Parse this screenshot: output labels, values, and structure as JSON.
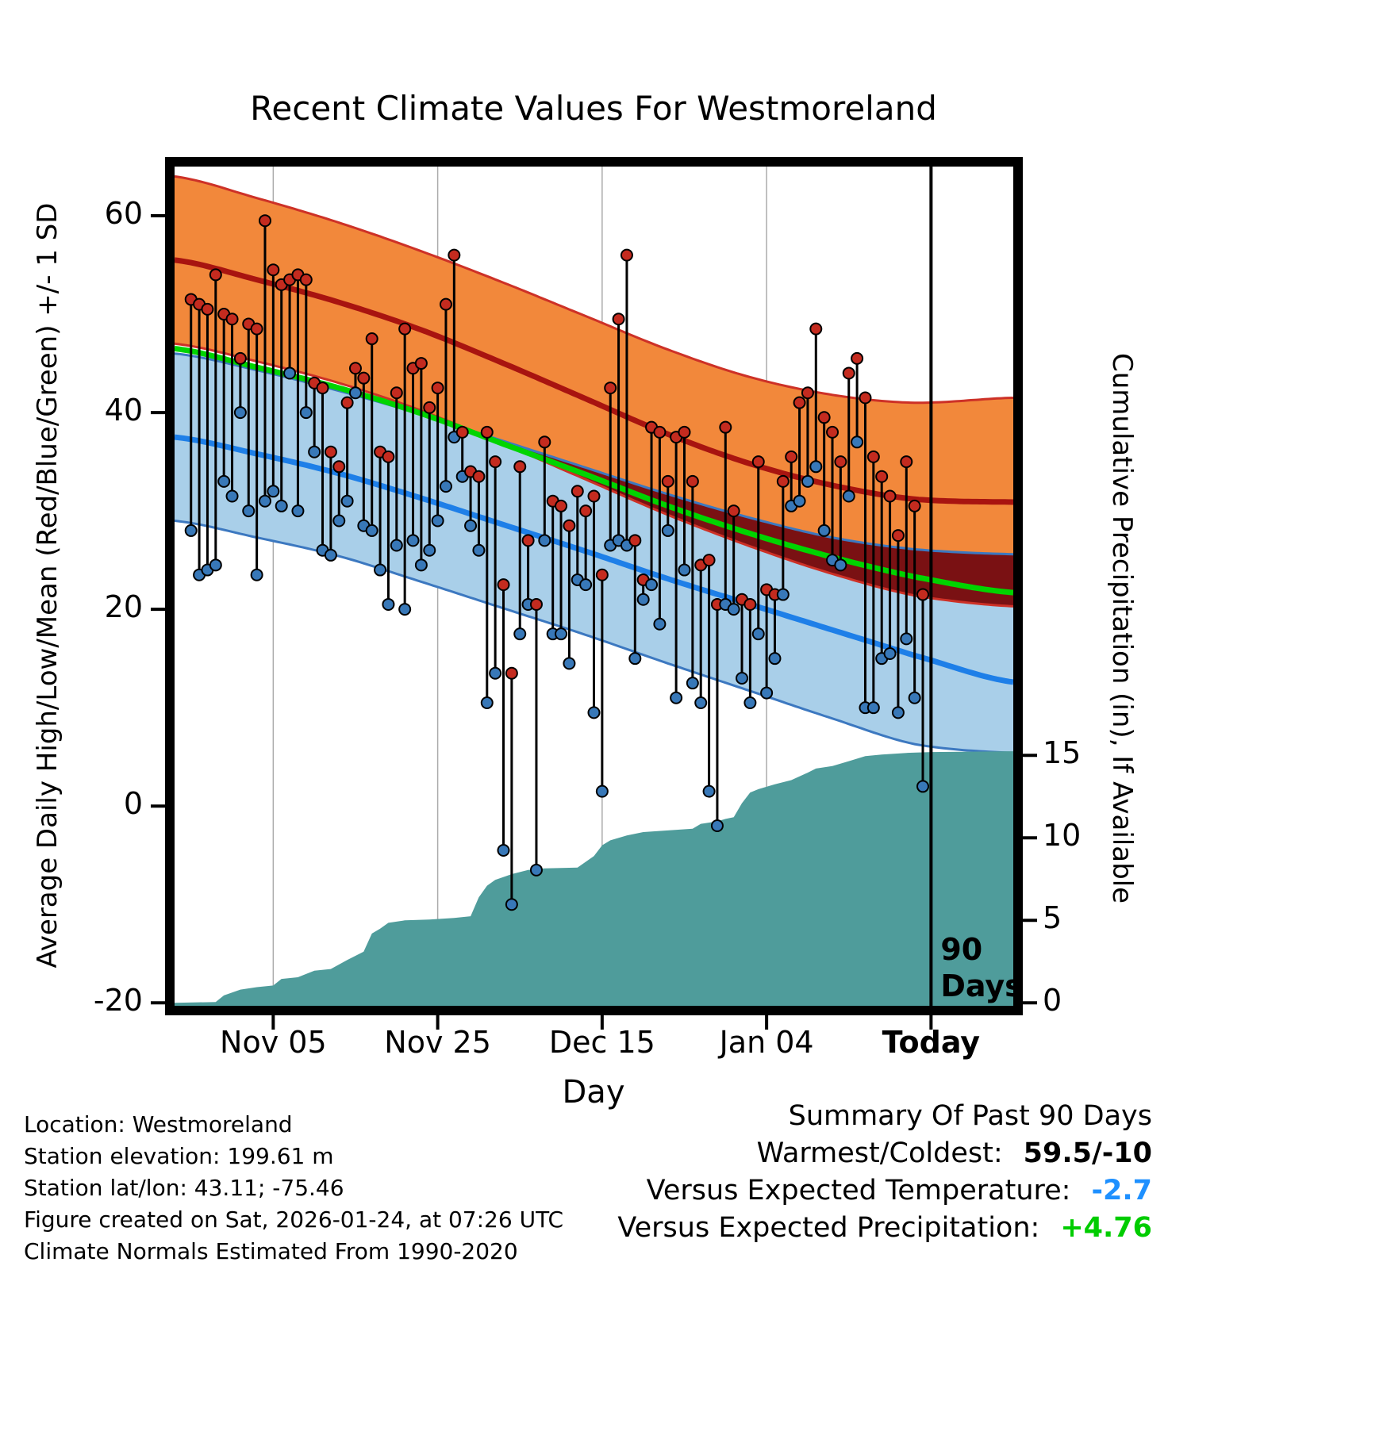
{
  "title": "Recent Climate Values For Westmoreland",
  "axes": {
    "x_label": "Day",
    "y_left_label": "Average Daily High/Low/Mean (Red/Blue/Green) +/- 1 SD",
    "y_right_label": "Cumulative Precipitation (in), If Available",
    "x_ticks": [
      {
        "day": 12,
        "label": "Nov 05",
        "bold": false
      },
      {
        "day": 32,
        "label": "Nov 25",
        "bold": false
      },
      {
        "day": 52,
        "label": "Dec 15",
        "bold": false
      },
      {
        "day": 72,
        "label": "Jan 04",
        "bold": false
      },
      {
        "day": 92,
        "label": "Today",
        "bold": true
      }
    ],
    "y_left_ticks": [
      {
        "value": 60,
        "label": "60"
      },
      {
        "value": 40,
        "label": "40"
      },
      {
        "value": 20,
        "label": "20"
      },
      {
        "value": 0,
        "label": "0"
      },
      {
        "value": -20,
        "label": "-20"
      }
    ],
    "y_right_ticks": [
      {
        "value": 0,
        "label": "0"
      },
      {
        "value": 5,
        "label": "5"
      },
      {
        "value": 10,
        "label": "10"
      },
      {
        "value": 15,
        "label": "15"
      }
    ]
  },
  "annotations": {
    "ninety_days": "90\nDays"
  },
  "station_info": [
    "Location: Westmoreland",
    "Station elevation: 199.61 m",
    "Station lat/lon: 43.11; -75.46",
    "Figure created on Sat, 2026-01-24, at 07:26 UTC",
    "Climate Normals Estimated From 1990-2020"
  ],
  "summary": {
    "title": "Summary Of Past 90 Days",
    "rows": [
      {
        "label": "Warmest/Coldest:",
        "value": "59.5/-10",
        "value_color": "#000000"
      },
      {
        "label": "Versus Expected Temperature:",
        "value": "-2.7",
        "value_color": "#1E90FF"
      },
      {
        "label": "Versus Expected Precipitation:",
        "value": "+4.76",
        "value_color": "#00CC00"
      }
    ]
  },
  "chart_data": {
    "type": "line+band+area+scatter",
    "x_unit": "day index (0 = Oct 24, ticks every 20 days)",
    "x_domain": [
      0,
      102
    ],
    "today_day": 92,
    "y_left_domain": [
      -20.3,
      65.0
    ],
    "y_left_ticks": [
      -20,
      0,
      20,
      40,
      60
    ],
    "y_right_unit": "in",
    "y_right_ticks": [
      0,
      5,
      10,
      15
    ],
    "y_right_scale": {
      "zero_temp": -20.0,
      "deg_per_in": 1.677
    },
    "normals": {
      "days": [
        0,
        10,
        20,
        30,
        40,
        50,
        60,
        70,
        80,
        90,
        102
      ],
      "high_upper": [
        64.0,
        61.8,
        59.3,
        56.4,
        53.2,
        49.8,
        46.4,
        43.6,
        41.8,
        41.0,
        41.5
      ],
      "high_mean": [
        55.5,
        53.5,
        51.2,
        48.4,
        45.0,
        41.4,
        37.8,
        34.8,
        32.6,
        31.2,
        30.9
      ],
      "high_lower": [
        47.0,
        45.2,
        43.0,
        40.2,
        36.8,
        33.2,
        29.6,
        26.4,
        23.6,
        21.4,
        20.3
      ],
      "mean": [
        46.5,
        44.6,
        42.5,
        39.9,
        36.8,
        33.7,
        30.5,
        27.7,
        25.3,
        23.3,
        21.7
      ],
      "low_upper": [
        46.0,
        44.3,
        42.2,
        39.8,
        37.1,
        34.4,
        31.7,
        29.3,
        27.3,
        26.1,
        25.6
      ],
      "low_mean": [
        37.5,
        35.8,
        33.8,
        31.3,
        28.6,
        25.9,
        23.1,
        20.5,
        17.9,
        15.3,
        12.6
      ],
      "low_lower": [
        29.0,
        27.3,
        25.4,
        22.8,
        20.1,
        17.4,
        14.5,
        11.7,
        8.9,
        6.3,
        5.4
      ]
    },
    "daily": {
      "start_day": 2,
      "high": [
        51.5,
        51,
        50.5,
        54,
        50,
        49.5,
        45.5,
        49,
        48.5,
        59.5,
        54.5,
        53,
        53.5,
        54,
        53.5,
        43,
        42.5,
        36,
        34.5,
        41,
        44.5,
        43.5,
        47.5,
        36,
        35.5,
        42,
        48.5,
        44.5,
        45,
        40.5,
        42.5,
        51,
        56,
        38,
        34,
        33.5,
        38,
        35,
        22.5,
        13.5,
        34.5,
        27,
        20.5,
        37,
        31,
        30.5,
        28.5,
        32,
        30,
        31.5,
        23.5,
        42.5,
        49.5,
        56,
        27,
        23,
        38.5,
        38,
        33,
        37.5,
        38,
        33,
        24.5,
        25,
        20.5,
        38.5,
        30,
        21,
        20.5,
        35,
        22,
        21.5,
        33,
        35.5,
        41,
        42,
        48.5,
        39.5,
        38,
        35,
        44,
        45.5,
        41.5,
        35.5,
        33.5,
        31.5,
        27.5,
        35,
        30.5,
        21.5
      ],
      "low": [
        28,
        23.5,
        24,
        24.5,
        33,
        31.5,
        40,
        30,
        23.5,
        31,
        32,
        30.5,
        44,
        30,
        40,
        36,
        26,
        25.5,
        29,
        31,
        42,
        28.5,
        28,
        24,
        20.5,
        26.5,
        20,
        27,
        24.5,
        26,
        29,
        32.5,
        37.5,
        33.5,
        28.5,
        26,
        10.5,
        13.5,
        -4.5,
        -10,
        17.5,
        20.5,
        -6.5,
        27,
        17.5,
        17.5,
        14.5,
        23,
        22.5,
        9.5,
        1.5,
        26.5,
        27,
        26.5,
        15,
        21,
        22.5,
        18.5,
        28,
        11,
        24,
        12.5,
        10.5,
        1.5,
        -2,
        20.5,
        20,
        13,
        10.5,
        17.5,
        11.5,
        15,
        21.5,
        30.5,
        31,
        33,
        34.5,
        28,
        25,
        24.5,
        31.5,
        37,
        10,
        10,
        15,
        15.5,
        9.5,
        17,
        11,
        2
      ]
    },
    "precip_cumulative": {
      "points": [
        [
          0,
          0
        ],
        [
          5,
          0.05
        ],
        [
          6,
          0.45
        ],
        [
          8,
          0.8
        ],
        [
          10,
          0.95
        ],
        [
          12,
          1.05
        ],
        [
          13,
          1.45
        ],
        [
          15,
          1.55
        ],
        [
          17,
          1.95
        ],
        [
          19,
          2.05
        ],
        [
          21,
          2.6
        ],
        [
          23,
          3.1
        ],
        [
          24,
          4.2
        ],
        [
          25,
          4.5
        ],
        [
          26,
          4.85
        ],
        [
          28,
          5.0
        ],
        [
          31,
          5.05
        ],
        [
          34,
          5.15
        ],
        [
          36,
          5.25
        ],
        [
          37,
          6.4
        ],
        [
          38,
          7.1
        ],
        [
          39,
          7.45
        ],
        [
          41,
          7.8
        ],
        [
          43,
          8.05
        ],
        [
          45,
          8.15
        ],
        [
          49,
          8.2
        ],
        [
          51,
          8.9
        ],
        [
          52,
          9.55
        ],
        [
          53,
          9.85
        ],
        [
          55,
          10.15
        ],
        [
          57,
          10.35
        ],
        [
          60,
          10.45
        ],
        [
          63,
          10.55
        ],
        [
          64,
          10.85
        ],
        [
          66,
          11.0
        ],
        [
          67,
          11.15
        ],
        [
          68,
          11.25
        ],
        [
          69,
          12.1
        ],
        [
          70,
          12.75
        ],
        [
          71,
          12.95
        ],
        [
          73,
          13.25
        ],
        [
          75,
          13.5
        ],
        [
          77,
          13.95
        ],
        [
          78,
          14.2
        ],
        [
          80,
          14.35
        ],
        [
          82,
          14.65
        ],
        [
          84,
          14.95
        ],
        [
          86,
          15.05
        ],
        [
          89,
          15.15
        ],
        [
          92,
          15.2
        ],
        [
          102,
          15.25
        ]
      ]
    },
    "colors": {
      "high_band": "#F2883B",
      "high_band_edge": "#CD3127",
      "high_mean_line": "#A81410",
      "overlap_band": "#7A1113",
      "mean_line": "#00D400",
      "low_band": "#A9CFE9",
      "low_band_edge": "#3C78C0",
      "low_mean_line": "#1E7FE8",
      "precip_fill": "#4F9C9B",
      "high_dot": "#C42B1F",
      "low_dot": "#3878B8",
      "stem": "#000000",
      "grid": "#ABABAB",
      "frame": "#000000"
    }
  }
}
